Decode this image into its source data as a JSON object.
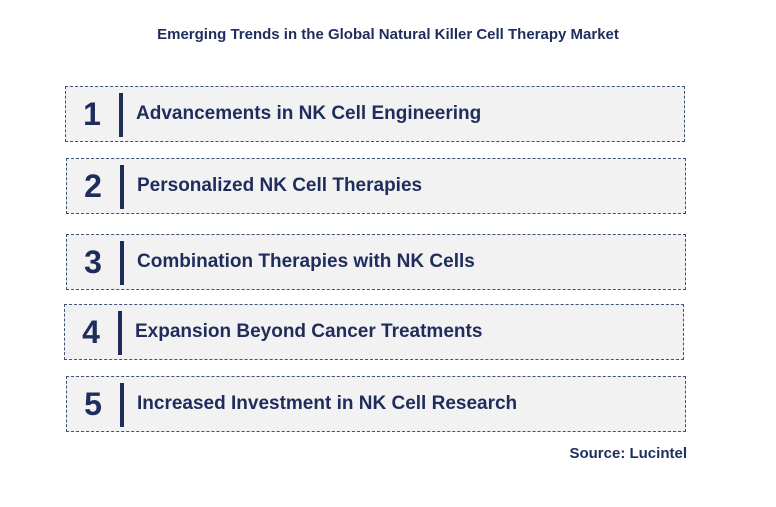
{
  "title": "Emerging Trends in the Global Natural Killer Cell Therapy Market",
  "trends": [
    {
      "number": "1",
      "label": "Advancements in NK Cell Engineering"
    },
    {
      "number": "2",
      "label": "Personalized NK Cell Therapies"
    },
    {
      "number": "3",
      "label": "Combination Therapies with NK Cells"
    },
    {
      "number": "4",
      "label": "Expansion Beyond Cancer Treatments"
    },
    {
      "number": "5",
      "label": "Increased Investment in NK Cell Research"
    }
  ],
  "source": "Source: Lucintel",
  "colors": {
    "text": "#1f2d5c",
    "box_fill": "#f2f2f2",
    "box_border": "#3f5277"
  }
}
